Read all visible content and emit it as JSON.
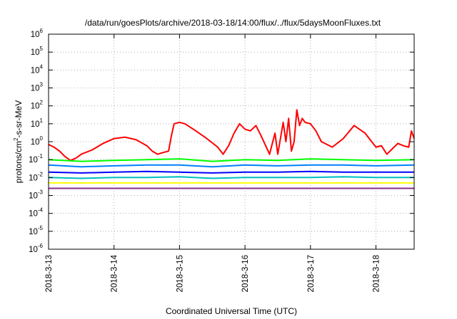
{
  "chart_data": {
    "type": "line",
    "title": "/data/run/goesPlots/archive/2018-03-18/14:00/flux/../flux/5daysMoonFluxes.txt",
    "xlabel": "Coordinated Universal Time (UTC)",
    "ylabel": "protons/cm2-s-sr-MeV",
    "ylabel_parts": {
      "base": "protons/cm",
      "exp": "2",
      "rest": "-s-sr-MeV"
    },
    "yscale": "log",
    "ylim": [
      1e-06,
      1000000.0
    ],
    "y_ticks": [
      {
        "base": "10",
        "exp": "-6",
        "value": 1e-06
      },
      {
        "base": "10",
        "exp": "-5",
        "value": 1e-05
      },
      {
        "base": "10",
        "exp": "-4",
        "value": 0.0001
      },
      {
        "base": "10",
        "exp": "-3",
        "value": 0.001
      },
      {
        "base": "10",
        "exp": "-2",
        "value": 0.01
      },
      {
        "base": "10",
        "exp": "-1",
        "value": 0.1
      },
      {
        "base": "10",
        "exp": "0",
        "value": 1
      },
      {
        "base": "10",
        "exp": "1",
        "value": 10
      },
      {
        "base": "10",
        "exp": "2",
        "value": 100
      },
      {
        "base": "10",
        "exp": "3",
        "value": 1000
      },
      {
        "base": "10",
        "exp": "4",
        "value": 10000
      },
      {
        "base": "10",
        "exp": "5",
        "value": 100000
      },
      {
        "base": "10",
        "exp": "6",
        "value": 1000000
      }
    ],
    "xlim": [
      "2018-03-13",
      "2018-03-18 14:00"
    ],
    "x_ticks": [
      "2018-3-13",
      "2018-3-14",
      "2018-3-15",
      "2018-3-16",
      "2018-3-17",
      "2018-3-18"
    ],
    "grid": true,
    "legend": "none",
    "series": [
      {
        "color": "#ff0000",
        "x": [
          "2018-03-13 00:00",
          "2018-03-13 02:00",
          "2018-03-13 04:00",
          "2018-03-13 06:00",
          "2018-03-13 08:00",
          "2018-03-13 10:00",
          "2018-03-13 12:00",
          "2018-03-13 16:00",
          "2018-03-13 20:00",
          "2018-03-14 00:00",
          "2018-03-14 04:00",
          "2018-03-14 08:00",
          "2018-03-14 12:00",
          "2018-03-14 14:00",
          "2018-03-14 16:00",
          "2018-03-14 18:00",
          "2018-03-14 20:00",
          "2018-03-14 21:00",
          "2018-03-14 22:00",
          "2018-03-15 00:00",
          "2018-03-15 02:00",
          "2018-03-15 06:00",
          "2018-03-15 10:00",
          "2018-03-15 14:00",
          "2018-03-15 16:00",
          "2018-03-15 18:00",
          "2018-03-15 20:00",
          "2018-03-15 22:00",
          "2018-03-16 00:00",
          "2018-03-16 02:00",
          "2018-03-16 04:00",
          "2018-03-16 06:00",
          "2018-03-16 09:00",
          "2018-03-16 11:00",
          "2018-03-16 12:00",
          "2018-03-16 14:00",
          "2018-03-16 15:00",
          "2018-03-16 16:00",
          "2018-03-16 17:00",
          "2018-03-16 18:00",
          "2018-03-16 19:00",
          "2018-03-16 20:00",
          "2018-03-16 21:00",
          "2018-03-16 22:00",
          "2018-03-17 00:00",
          "2018-03-17 02:00",
          "2018-03-17 04:00",
          "2018-03-17 08:00",
          "2018-03-17 12:00",
          "2018-03-17 16:00",
          "2018-03-17 20:00",
          "2018-03-18 00:00",
          "2018-03-18 02:00",
          "2018-03-18 04:00",
          "2018-03-18 06:00",
          "2018-03-18 08:00",
          "2018-03-18 10:00",
          "2018-03-18 12:00",
          "2018-03-18 13:00",
          "2018-03-18 14:00"
        ],
        "values": [
          0.7,
          0.5,
          0.3,
          0.15,
          0.09,
          0.12,
          0.2,
          0.35,
          0.8,
          1.5,
          1.8,
          1.3,
          0.6,
          0.3,
          0.2,
          0.25,
          0.3,
          2,
          10,
          12,
          10,
          4,
          1.5,
          0.5,
          0.2,
          0.6,
          3,
          10,
          5,
          4,
          8,
          2,
          0.2,
          3,
          0.2,
          12,
          1,
          20,
          0.3,
          1,
          60,
          8,
          20,
          12,
          10,
          4,
          1,
          0.5,
          1.5,
          8,
          3,
          0.5,
          0.6,
          0.2,
          0.4,
          0.8,
          0.6,
          0.5,
          4,
          1.5
        ]
      },
      {
        "color": "#00ff00",
        "x": [
          "2018-03-13 00:00",
          "2018-03-13 12:00",
          "2018-03-14 00:00",
          "2018-03-14 12:00",
          "2018-03-15 00:00",
          "2018-03-15 12:00",
          "2018-03-16 00:00",
          "2018-03-16 12:00",
          "2018-03-17 00:00",
          "2018-03-17 12:00",
          "2018-03-18 00:00",
          "2018-03-18 14:00"
        ],
        "values": [
          0.1,
          0.08,
          0.09,
          0.1,
          0.11,
          0.08,
          0.1,
          0.09,
          0.11,
          0.1,
          0.09,
          0.1
        ]
      },
      {
        "color": "#0080ff",
        "x": [
          "2018-03-13 00:00",
          "2018-03-13 12:00",
          "2018-03-14 00:00",
          "2018-03-14 12:00",
          "2018-03-15 00:00",
          "2018-03-15 12:00",
          "2018-03-16 00:00",
          "2018-03-16 12:00",
          "2018-03-17 00:00",
          "2018-03-17 12:00",
          "2018-03-18 00:00",
          "2018-03-18 14:00"
        ],
        "values": [
          0.05,
          0.04,
          0.045,
          0.05,
          0.05,
          0.04,
          0.05,
          0.045,
          0.05,
          0.05,
          0.045,
          0.05
        ]
      },
      {
        "color": "#0000ff",
        "x": [
          "2018-03-13 00:00",
          "2018-03-13 12:00",
          "2018-03-14 00:00",
          "2018-03-14 12:00",
          "2018-03-15 00:00",
          "2018-03-15 12:00",
          "2018-03-16 00:00",
          "2018-03-16 12:00",
          "2018-03-17 00:00",
          "2018-03-17 12:00",
          "2018-03-18 00:00",
          "2018-03-18 14:00"
        ],
        "values": [
          0.02,
          0.018,
          0.02,
          0.022,
          0.02,
          0.018,
          0.02,
          0.02,
          0.022,
          0.02,
          0.02,
          0.02
        ]
      },
      {
        "color": "#00c0c0",
        "x": [
          "2018-03-13 00:00",
          "2018-03-13 12:00",
          "2018-03-14 00:00",
          "2018-03-14 12:00",
          "2018-03-15 00:00",
          "2018-03-15 12:00",
          "2018-03-16 00:00",
          "2018-03-16 12:00",
          "2018-03-17 00:00",
          "2018-03-17 12:00",
          "2018-03-18 00:00",
          "2018-03-18 14:00"
        ],
        "values": [
          0.01,
          0.009,
          0.01,
          0.01,
          0.011,
          0.009,
          0.01,
          0.01,
          0.01,
          0.011,
          0.01,
          0.01
        ]
      },
      {
        "color": "#ffff00",
        "x": [
          "2018-03-13 00:00",
          "2018-03-14 00:00",
          "2018-03-15 00:00",
          "2018-03-16 00:00",
          "2018-03-17 00:00",
          "2018-03-18 00:00",
          "2018-03-18 14:00"
        ],
        "values": [
          0.005,
          0.005,
          0.005,
          0.005,
          0.005,
          0.005,
          0.005
        ]
      },
      {
        "color": "#8b2c8b",
        "x": [
          "2018-03-13 00:00",
          "2018-03-14 00:00",
          "2018-03-15 00:00",
          "2018-03-16 00:00",
          "2018-03-17 00:00",
          "2018-03-18 00:00",
          "2018-03-18 14:00"
        ],
        "values": [
          0.0025,
          0.0025,
          0.0025,
          0.0025,
          0.0025,
          0.0025,
          0.0025
        ]
      }
    ]
  }
}
